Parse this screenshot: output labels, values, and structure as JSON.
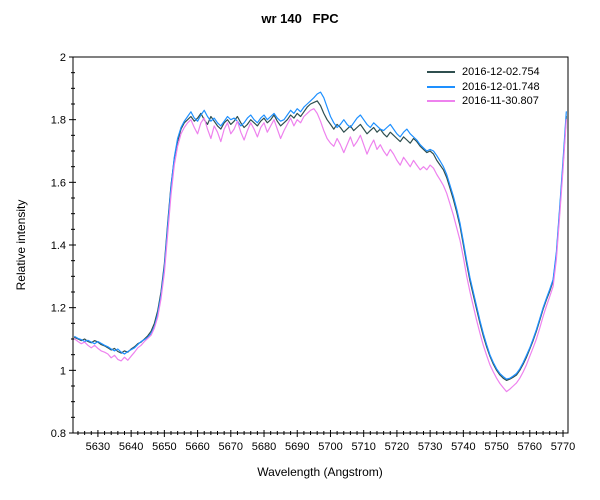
{
  "title": "wr 140   FPC",
  "axes": {
    "xlabel": "Wavelength (Angstrom)",
    "ylabel": "Relative intensity"
  },
  "chart_data": {
    "type": "line",
    "title": "wr 140   FPC",
    "xlabel": "Wavelength (Angstrom)",
    "ylabel": "Relative intensity",
    "xlim": [
      5622.5,
      5771.5
    ],
    "ylim": [
      0.8,
      2.0
    ],
    "grid": false,
    "legend_position": "top-right",
    "x_major_ticks": [
      5630,
      5640,
      5650,
      5660,
      5670,
      5680,
      5690,
      5700,
      5710,
      5720,
      5730,
      5740,
      5750,
      5760,
      5770
    ],
    "x_minor_step": 2,
    "y_major_ticks": [
      {
        "value": 0.8,
        "label": "0.8"
      },
      {
        "value": 1.0,
        "label": "1"
      },
      {
        "value": 1.2,
        "label": "1.2"
      },
      {
        "value": 1.4,
        "label": "1.4"
      },
      {
        "value": 1.6,
        "label": "1.6"
      },
      {
        "value": 1.8,
        "label": "1.8"
      },
      {
        "value": 2.0,
        "label": "2"
      }
    ],
    "y_minor_step": 0.05,
    "x_start": 5623,
    "x_step": 1,
    "series": [
      {
        "name": "2016-12-02.754",
        "color": "#2f4f4f",
        "values": [
          1.105,
          1.1,
          1.095,
          1.1,
          1.092,
          1.088,
          1.095,
          1.09,
          1.082,
          1.078,
          1.072,
          1.065,
          1.07,
          1.06,
          1.055,
          1.062,
          1.058,
          1.068,
          1.075,
          1.085,
          1.09,
          1.1,
          1.11,
          1.125,
          1.15,
          1.19,
          1.25,
          1.34,
          1.47,
          1.59,
          1.675,
          1.73,
          1.77,
          1.79,
          1.8,
          1.81,
          1.795,
          1.805,
          1.82,
          1.8,
          1.785,
          1.81,
          1.795,
          1.78,
          1.77,
          1.79,
          1.8,
          1.785,
          1.795,
          1.81,
          1.79,
          1.775,
          1.785,
          1.8,
          1.79,
          1.78,
          1.795,
          1.805,
          1.79,
          1.8,
          1.815,
          1.795,
          1.78,
          1.79,
          1.8,
          1.815,
          1.805,
          1.82,
          1.81,
          1.825,
          1.84,
          1.85,
          1.855,
          1.86,
          1.845,
          1.82,
          1.8,
          1.785,
          1.77,
          1.785,
          1.775,
          1.76,
          1.77,
          1.78,
          1.765,
          1.775,
          1.785,
          1.77,
          1.755,
          1.765,
          1.775,
          1.76,
          1.77,
          1.755,
          1.745,
          1.76,
          1.75,
          1.74,
          1.73,
          1.745,
          1.735,
          1.725,
          1.74,
          1.73,
          1.715,
          1.705,
          1.695,
          1.7,
          1.69,
          1.67,
          1.655,
          1.64,
          1.615,
          1.58,
          1.545,
          1.505,
          1.46,
          1.4,
          1.34,
          1.285,
          1.24,
          1.195,
          1.15,
          1.11,
          1.075,
          1.045,
          1.02,
          1.0,
          0.985,
          0.975,
          0.968,
          0.972,
          0.978,
          0.985,
          1.0,
          1.02,
          1.042,
          1.068,
          1.095,
          1.125,
          1.16,
          1.195,
          1.225,
          1.252,
          1.285,
          1.37,
          1.51,
          1.655,
          1.81
        ]
      },
      {
        "name": "2016-12-01.748",
        "color": "#1e90ff",
        "values": [
          1.108,
          1.102,
          1.098,
          1.092,
          1.096,
          1.09,
          1.085,
          1.092,
          1.086,
          1.08,
          1.075,
          1.068,
          1.062,
          1.068,
          1.058,
          1.052,
          1.06,
          1.066,
          1.072,
          1.082,
          1.092,
          1.098,
          1.105,
          1.118,
          1.14,
          1.18,
          1.24,
          1.33,
          1.46,
          1.585,
          1.68,
          1.74,
          1.775,
          1.795,
          1.81,
          1.825,
          1.805,
          1.795,
          1.815,
          1.83,
          1.81,
          1.795,
          1.805,
          1.79,
          1.78,
          1.795,
          1.81,
          1.8,
          1.805,
          1.795,
          1.78,
          1.79,
          1.805,
          1.815,
          1.8,
          1.79,
          1.805,
          1.815,
          1.8,
          1.81,
          1.82,
          1.805,
          1.795,
          1.8,
          1.815,
          1.83,
          1.82,
          1.835,
          1.825,
          1.84,
          1.85,
          1.86,
          1.87,
          1.882,
          1.888,
          1.87,
          1.84,
          1.81,
          1.79,
          1.775,
          1.785,
          1.8,
          1.785,
          1.775,
          1.79,
          1.805,
          1.815,
          1.8,
          1.785,
          1.775,
          1.79,
          1.78,
          1.77,
          1.765,
          1.775,
          1.785,
          1.77,
          1.755,
          1.745,
          1.76,
          1.77,
          1.755,
          1.745,
          1.735,
          1.72,
          1.71,
          1.7,
          1.705,
          1.7,
          1.685,
          1.668,
          1.65,
          1.625,
          1.59,
          1.555,
          1.515,
          1.47,
          1.41,
          1.35,
          1.295,
          1.25,
          1.205,
          1.158,
          1.118,
          1.082,
          1.05,
          1.025,
          1.005,
          0.99,
          0.98,
          0.972,
          0.975,
          0.982,
          0.99,
          1.005,
          1.025,
          1.048,
          1.072,
          1.1,
          1.13,
          1.165,
          1.2,
          1.23,
          1.258,
          1.29,
          1.378,
          1.52,
          1.668,
          1.825
        ]
      },
      {
        "name": "2016-11-30.807",
        "color": "#ee82ee",
        "values": [
          1.1,
          1.092,
          1.085,
          1.09,
          1.08,
          1.072,
          1.08,
          1.07,
          1.062,
          1.058,
          1.052,
          1.04,
          1.048,
          1.035,
          1.03,
          1.042,
          1.032,
          1.045,
          1.058,
          1.072,
          1.08,
          1.092,
          1.102,
          1.112,
          1.135,
          1.17,
          1.228,
          1.312,
          1.435,
          1.56,
          1.655,
          1.715,
          1.755,
          1.775,
          1.79,
          1.8,
          1.775,
          1.755,
          1.79,
          1.805,
          1.77,
          1.74,
          1.78,
          1.76,
          1.73,
          1.77,
          1.79,
          1.755,
          1.77,
          1.795,
          1.76,
          1.735,
          1.765,
          1.79,
          1.77,
          1.745,
          1.775,
          1.79,
          1.76,
          1.78,
          1.8,
          1.77,
          1.74,
          1.765,
          1.785,
          1.805,
          1.78,
          1.8,
          1.79,
          1.81,
          1.82,
          1.83,
          1.835,
          1.82,
          1.795,
          1.765,
          1.74,
          1.725,
          1.715,
          1.74,
          1.72,
          1.695,
          1.72,
          1.745,
          1.715,
          1.73,
          1.75,
          1.72,
          1.69,
          1.715,
          1.735,
          1.705,
          1.72,
          1.7,
          1.685,
          1.705,
          1.69,
          1.67,
          1.655,
          1.68,
          1.665,
          1.65,
          1.67,
          1.655,
          1.64,
          1.65,
          1.64,
          1.655,
          1.645,
          1.625,
          1.608,
          1.59,
          1.565,
          1.53,
          1.495,
          1.455,
          1.415,
          1.36,
          1.3,
          1.25,
          1.205,
          1.16,
          1.118,
          1.08,
          1.048,
          1.018,
          0.995,
          0.975,
          0.958,
          0.945,
          0.932,
          0.94,
          0.95,
          0.96,
          0.975,
          0.995,
          1.018,
          1.045,
          1.072,
          1.1,
          1.135,
          1.172,
          1.205,
          1.235,
          1.268,
          1.355,
          1.495,
          1.64,
          1.8
        ]
      }
    ]
  }
}
